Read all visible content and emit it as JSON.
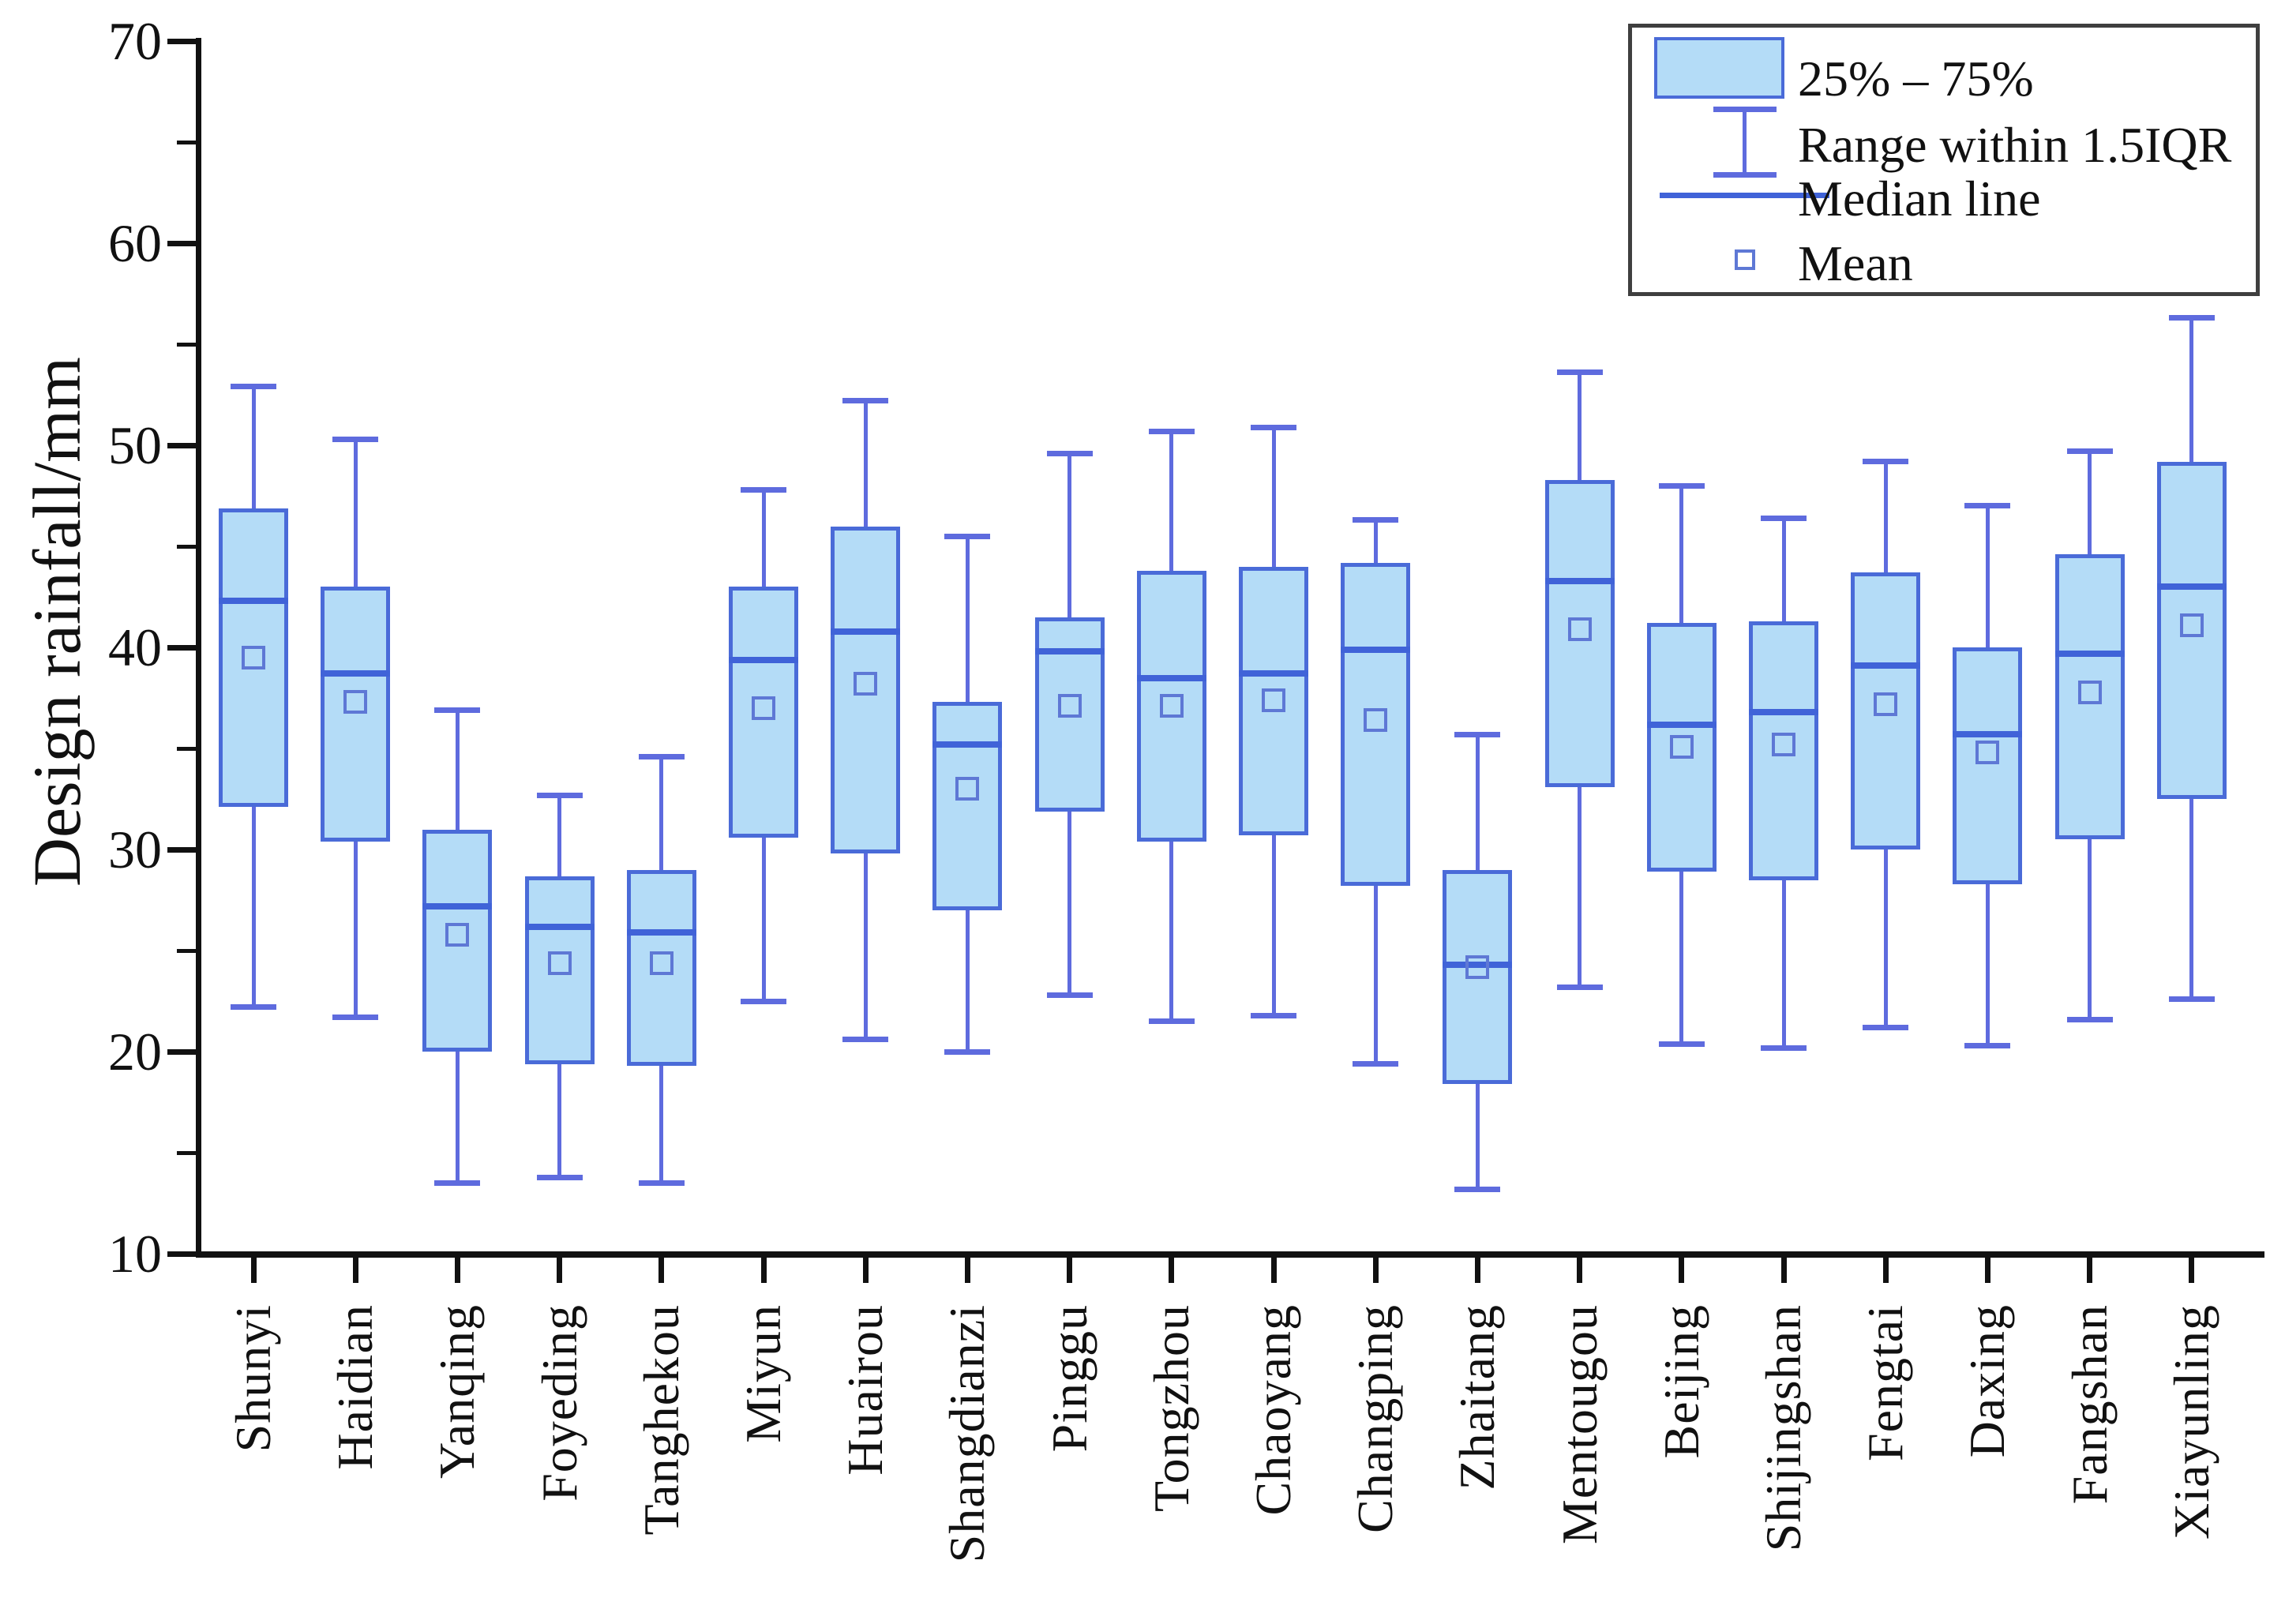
{
  "axis": {
    "y_label": "Design rainfall/mm",
    "y_min": 10,
    "y_max": 70,
    "y_major_ticks": [
      70,
      60,
      50,
      40,
      30,
      20,
      10
    ],
    "y_minor_ticks": [
      65,
      55,
      45,
      35,
      25,
      15
    ]
  },
  "legend": {
    "items": [
      {
        "symbol": "box-swatch",
        "label": "25% – 75%"
      },
      {
        "symbol": "whisker-ibeam",
        "label": "Range within 1.5IQR"
      },
      {
        "symbol": "median-line",
        "label": "Median line"
      },
      {
        "symbol": "mean-square",
        "label": "Mean"
      }
    ]
  },
  "chart_data": {
    "type": "box",
    "title": "",
    "xlabel": "",
    "ylabel": "Design rainfall/mm",
    "ylim": [
      10,
      70
    ],
    "grid": false,
    "legend_position": "top-right",
    "categories": [
      "Shunyi",
      "Haidian",
      "Yanqing",
      "Foyeding",
      "Tanghekou",
      "Miyun",
      "Huairou",
      "Shangdianzi",
      "Pinggu",
      "Tongzhou",
      "Chaoyang",
      "Changping",
      "Zhaitang",
      "Mentougou",
      "Beijing",
      "Shijingshan",
      "Fengtai",
      "Daxing",
      "Fangshan",
      "Xiayunling"
    ],
    "series": [
      {
        "name": "Shunyi",
        "whisker_low": 22.2,
        "q1": 32.1,
        "median": 42.3,
        "mean": 39.5,
        "q3": 46.9,
        "whisker_high": 52.9
      },
      {
        "name": "Haidian",
        "whisker_low": 21.7,
        "q1": 30.4,
        "median": 38.7,
        "mean": 37.3,
        "q3": 43.0,
        "whisker_high": 50.3
      },
      {
        "name": "Yanqing",
        "whisker_low": 13.5,
        "q1": 20.0,
        "median": 27.2,
        "mean": 25.8,
        "q3": 31.0,
        "whisker_high": 36.9
      },
      {
        "name": "Foyeding",
        "whisker_low": 13.8,
        "q1": 19.4,
        "median": 26.2,
        "mean": 24.4,
        "q3": 28.7,
        "whisker_high": 32.7
      },
      {
        "name": "Tanghekou",
        "whisker_low": 13.5,
        "q1": 19.3,
        "median": 25.9,
        "mean": 24.4,
        "q3": 29.0,
        "whisker_high": 34.6
      },
      {
        "name": "Miyun",
        "whisker_low": 22.5,
        "q1": 30.6,
        "median": 39.4,
        "mean": 37.0,
        "q3": 43.0,
        "whisker_high": 47.8
      },
      {
        "name": "Huairou",
        "whisker_low": 20.6,
        "q1": 29.8,
        "median": 40.8,
        "mean": 38.2,
        "q3": 46.0,
        "whisker_high": 52.2
      },
      {
        "name": "Shangdianzi",
        "whisker_low": 20.0,
        "q1": 27.0,
        "median": 35.2,
        "mean": 33.0,
        "q3": 37.3,
        "whisker_high": 45.5
      },
      {
        "name": "Pinggu",
        "whisker_low": 22.8,
        "q1": 31.9,
        "median": 39.8,
        "mean": 37.1,
        "q3": 41.5,
        "whisker_high": 49.6
      },
      {
        "name": "Tongzhou",
        "whisker_low": 21.5,
        "q1": 30.4,
        "median": 38.5,
        "mean": 37.1,
        "q3": 43.8,
        "whisker_high": 50.7
      },
      {
        "name": "Chaoyang",
        "whisker_low": 21.8,
        "q1": 30.7,
        "median": 38.7,
        "mean": 37.4,
        "q3": 44.0,
        "whisker_high": 50.9
      },
      {
        "name": "Changping",
        "whisker_low": 19.4,
        "q1": 28.2,
        "median": 39.9,
        "mean": 36.4,
        "q3": 44.2,
        "whisker_high": 46.3
      },
      {
        "name": "Zhaitang",
        "whisker_low": 13.2,
        "q1": 18.4,
        "median": 24.3,
        "mean": 24.2,
        "q3": 29.0,
        "whisker_high": 35.7
      },
      {
        "name": "Mentougou",
        "whisker_low": 23.2,
        "q1": 33.1,
        "median": 43.3,
        "mean": 40.9,
        "q3": 48.3,
        "whisker_high": 53.6
      },
      {
        "name": "Beijing",
        "whisker_low": 20.4,
        "q1": 28.9,
        "median": 36.2,
        "mean": 35.1,
        "q3": 41.2,
        "whisker_high": 48.0
      },
      {
        "name": "Shijingshan",
        "whisker_low": 20.2,
        "q1": 28.5,
        "median": 36.8,
        "mean": 35.2,
        "q3": 41.3,
        "whisker_high": 46.4
      },
      {
        "name": "Fengtai",
        "whisker_low": 21.2,
        "q1": 30.0,
        "median": 39.1,
        "mean": 37.2,
        "q3": 43.7,
        "whisker_high": 49.2
      },
      {
        "name": "Daxing",
        "whisker_low": 20.3,
        "q1": 28.3,
        "median": 35.7,
        "mean": 34.8,
        "q3": 40.0,
        "whisker_high": 47.0
      },
      {
        "name": "Fangshan",
        "whisker_low": 21.6,
        "q1": 30.5,
        "median": 39.7,
        "mean": 37.8,
        "q3": 44.6,
        "whisker_high": 49.7
      },
      {
        "name": "Xiayunling",
        "whisker_low": 22.6,
        "q1": 32.5,
        "median": 43.0,
        "mean": 41.1,
        "q3": 49.2,
        "whisker_high": 56.3
      }
    ],
    "colors": {
      "box_fill": "#B4DCF7",
      "box_border": "#4A6BD8",
      "whisker": "#5E6BDE",
      "median_line": "#4063D8",
      "mean_marker": "#5E78D5",
      "axis": "#111111",
      "text": "#111111"
    }
  }
}
